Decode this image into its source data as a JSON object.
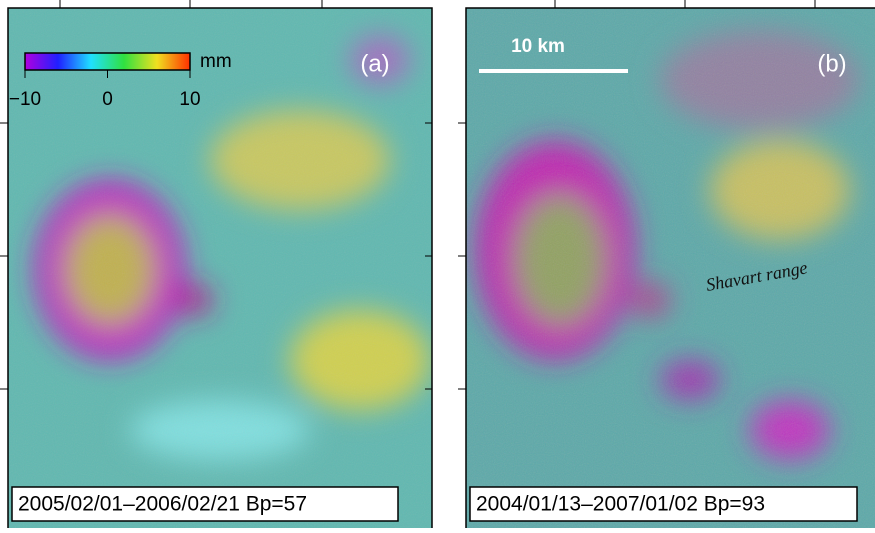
{
  "panels": [
    {
      "label": "(a)",
      "caption": "2005/02/01–2006/02/21 Bp=57",
      "colorbar": {
        "unit": "mm",
        "range": [
          -10,
          10
        ],
        "ticks": [
          {
            "value": -10,
            "label": "−10"
          },
          0,
          10
        ]
      }
    },
    {
      "label": "(b)",
      "caption": "2004/01/13–2007/01/02 Bp=93",
      "scale_bar": "10 km",
      "annotation": "Shavart range"
    }
  ]
}
